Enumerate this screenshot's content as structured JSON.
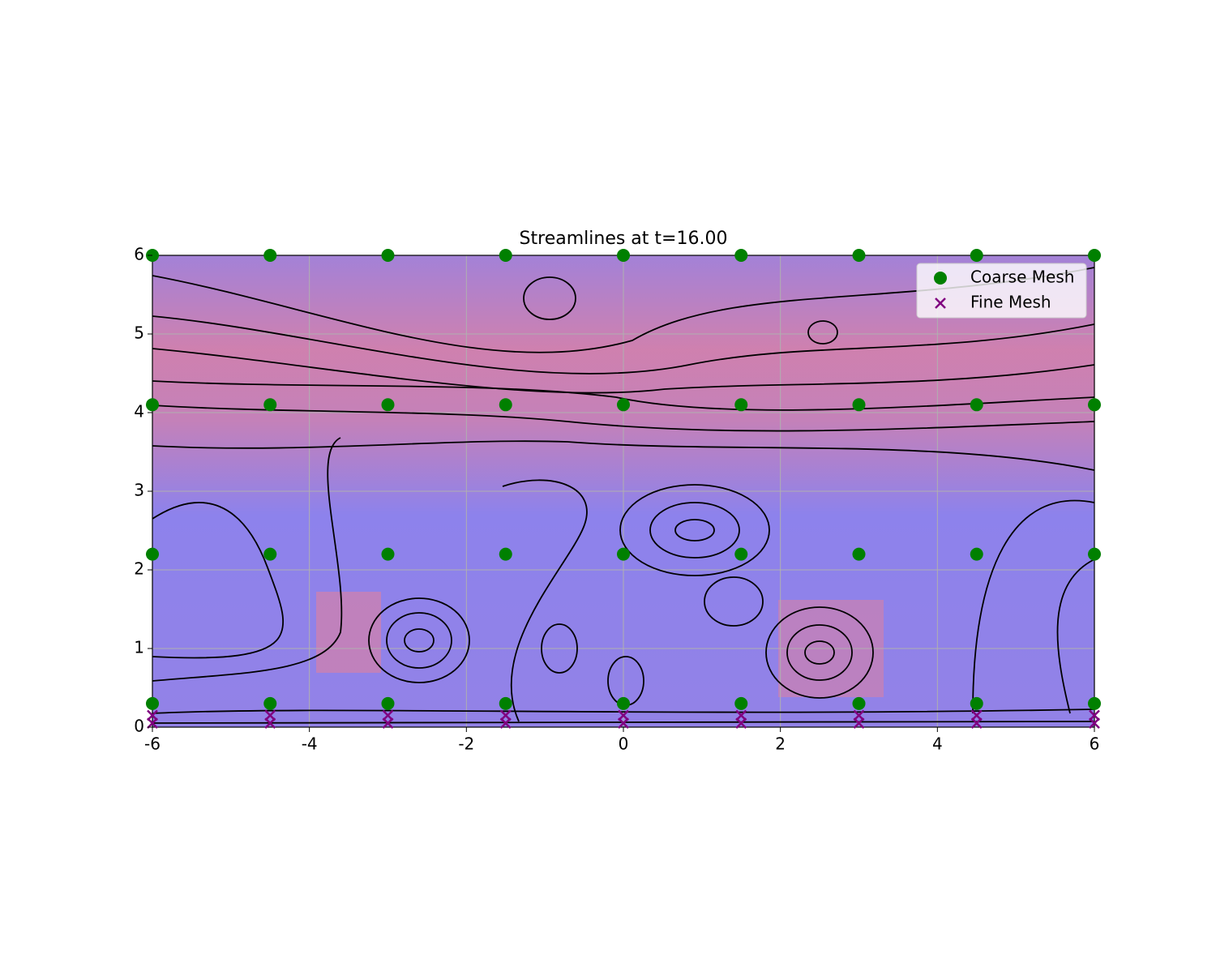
{
  "chart_data": {
    "type": "scatter",
    "title": "Streamlines at t=16.00",
    "series": [
      {
        "name": "Coarse Mesh",
        "color": "#008000",
        "marker": "circle",
        "x": [
          -6,
          -4.5,
          -3,
          -1.5,
          0,
          1.5,
          3,
          4.5,
          6,
          -6,
          -4.5,
          -3,
          -1.5,
          0,
          1.5,
          3,
          4.5,
          6,
          -6,
          -4.5,
          -3,
          -1.5,
          0,
          1.5,
          3,
          4.5,
          6,
          -6,
          -4.5,
          -3,
          -1.5,
          0,
          1.5,
          3,
          4.5,
          6
        ],
        "y": [
          6,
          6,
          6,
          6,
          6,
          6,
          6,
          6,
          6,
          4.1,
          4.1,
          4.1,
          4.1,
          4.1,
          4.1,
          4.1,
          4.1,
          4.1,
          2.2,
          2.2,
          2.2,
          2.2,
          2.2,
          2.2,
          2.2,
          2.2,
          2.2,
          0.3,
          0.3,
          0.3,
          0.3,
          0.3,
          0.3,
          0.3,
          0.3,
          0.3
        ]
      },
      {
        "name": "Fine Mesh",
        "color": "#800080",
        "marker": "x",
        "x": [
          -6,
          -4.5,
          -3,
          -1.5,
          0,
          1.5,
          3,
          4.5,
          6,
          -6,
          -4.5,
          -3,
          -1.5,
          0,
          1.5,
          3,
          4.5,
          6
        ],
        "y": [
          0.15,
          0.15,
          0.15,
          0.15,
          0.15,
          0.15,
          0.15,
          0.15,
          0.15,
          0.05,
          0.05,
          0.05,
          0.05,
          0.05,
          0.05,
          0.05,
          0.05,
          0.05
        ]
      }
    ],
    "xlim": [
      -6,
      6
    ],
    "ylim": [
      0,
      6
    ],
    "xticks": [
      -6,
      -4,
      -2,
      0,
      2,
      4,
      6
    ],
    "yticks": [
      0,
      1,
      2,
      3,
      4,
      5,
      6
    ],
    "grid": true,
    "legend": "upper right"
  }
}
